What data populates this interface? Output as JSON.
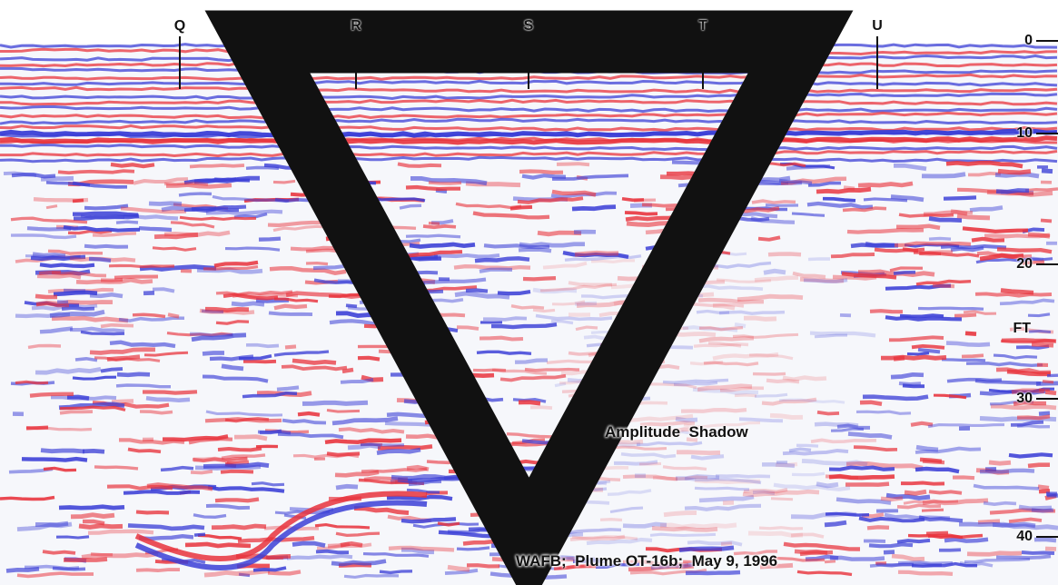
{
  "radargram": {
    "markers": [
      {
        "label": "Q"
      },
      {
        "label": "R"
      },
      {
        "label": "S"
      },
      {
        "label": "T"
      },
      {
        "label": "U"
      }
    ],
    "depth_axis": {
      "unit": "FT",
      "ticks": [
        "0",
        "10",
        "20",
        "30",
        "40"
      ]
    },
    "annotation": "Amplitude  Shadow",
    "caption": "WAFB;  Plume OT-16b;  May 9, 1996",
    "water_table_icon": "inverted-triangle-icon",
    "colors": {
      "positive": "#e8333c",
      "negative": "#3b3fd6",
      "background": "#f6f7fb"
    }
  }
}
